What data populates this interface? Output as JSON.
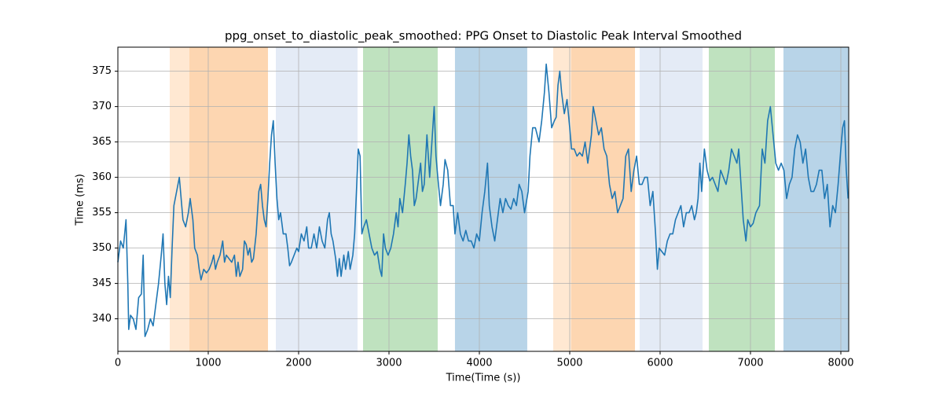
{
  "chart_data": {
    "type": "line",
    "title": "ppg_onset_to_diastolic_peak_smoothed: PPG Onset to Diastolic Peak Interval Smoothed",
    "xlabel": "Time(Time (s))",
    "ylabel": "Time (ms)",
    "color": "#1f77b4",
    "x": [
      0,
      30,
      60,
      90,
      110,
      120,
      140,
      170,
      200,
      230,
      260,
      280,
      300,
      330,
      360,
      390,
      420,
      450,
      480,
      500,
      520,
      540,
      560,
      580,
      600,
      620,
      650,
      680,
      700,
      720,
      750,
      780,
      800,
      830,
      850,
      880,
      900,
      920,
      950,
      980,
      1010,
      1040,
      1060,
      1080,
      1100,
      1130,
      1160,
      1180,
      1200,
      1230,
      1260,
      1290,
      1310,
      1330,
      1350,
      1380,
      1400,
      1420,
      1440,
      1460,
      1480,
      1500,
      1530,
      1560,
      1580,
      1600,
      1620,
      1640,
      1660,
      1680,
      1700,
      1720,
      1740,
      1760,
      1780,
      1800,
      1830,
      1860,
      1880,
      1900,
      1920,
      1950,
      1980,
      2000,
      2030,
      2060,
      2090,
      2110,
      2140,
      2170,
      2200,
      2230,
      2260,
      2290,
      2320,
      2340,
      2360,
      2380,
      2410,
      2430,
      2450,
      2470,
      2500,
      2520,
      2550,
      2570,
      2600,
      2620,
      2640,
      2660,
      2680,
      2700,
      2720,
      2750,
      2780,
      2810,
      2840,
      2870,
      2900,
      2920,
      2940,
      2960,
      2990,
      3020,
      3050,
      3080,
      3100,
      3120,
      3150,
      3180,
      3200,
      3220,
      3240,
      3260,
      3280,
      3300,
      3320,
      3350,
      3370,
      3390,
      3420,
      3450,
      3470,
      3500,
      3520,
      3540,
      3570,
      3600,
      3620,
      3650,
      3680,
      3710,
      3730,
      3760,
      3790,
      3820,
      3850,
      3880,
      3910,
      3940,
      3970,
      4000,
      4030,
      4060,
      4090,
      4110,
      4140,
      4170,
      4200,
      4230,
      4260,
      4290,
      4320,
      4350,
      4380,
      4410,
      4440,
      4470,
      4500,
      4540,
      4560,
      4590,
      4620,
      4660,
      4690,
      4720,
      4740,
      4770,
      4800,
      4830,
      4850,
      4870,
      4890,
      4910,
      4940,
      4970,
      5000,
      5020,
      5050,
      5080,
      5110,
      5140,
      5170,
      5200,
      5240,
      5260,
      5290,
      5320,
      5350,
      5380,
      5410,
      5440,
      5470,
      5500,
      5530,
      5560,
      5590,
      5620,
      5650,
      5680,
      5710,
      5740,
      5770,
      5800,
      5830,
      5860,
      5890,
      5920,
      5950,
      5970,
      5990,
      6020,
      6050,
      6080,
      6110,
      6140,
      6170,
      6200,
      6230,
      6260,
      6290,
      6320,
      6350,
      6380,
      6400,
      6420,
      6440,
      6460,
      6490,
      6520,
      6550,
      6580,
      6610,
      6640,
      6670,
      6700,
      6730,
      6760,
      6790,
      6820,
      6850,
      6870,
      6900,
      6920,
      6950,
      6970,
      7000,
      7030,
      7060,
      7100,
      7130,
      7160,
      7190,
      7220,
      7250,
      7280,
      7310,
      7340,
      7370,
      7400,
      7430,
      7460,
      7490,
      7520,
      7550,
      7580,
      7610,
      7640,
      7670,
      7700,
      7730,
      7760,
      7790,
      7820,
      7850,
      7880,
      7910,
      7940,
      7970,
      8000,
      8020,
      8040,
      8060,
      8080
    ],
    "values": [
      348,
      351,
      350,
      354,
      345,
      338.5,
      340.5,
      340,
      338.5,
      343,
      343.5,
      349,
      337.5,
      338.5,
      340,
      339,
      342,
      345,
      349,
      352,
      345,
      342,
      346,
      343,
      350,
      356,
      358,
      360,
      357,
      354,
      353,
      355,
      357,
      354,
      350,
      349,
      347,
      345.5,
      347,
      346.5,
      347,
      348,
      349,
      347,
      348,
      349,
      351,
      348,
      349,
      348.5,
      348,
      349,
      346,
      348,
      346,
      347,
      351,
      350.5,
      349,
      350,
      348,
      348.5,
      352,
      358,
      359,
      356,
      354,
      353,
      357,
      362,
      366,
      368,
      362,
      357,
      354,
      355,
      352,
      352,
      350,
      347.5,
      348,
      349,
      350,
      349.5,
      352,
      351,
      353,
      350,
      350,
      352,
      350,
      353,
      351,
      350,
      354,
      355,
      352,
      351,
      348.5,
      346,
      348.5,
      346,
      349,
      347,
      349.5,
      347,
      349,
      352,
      358,
      364,
      363,
      352,
      353,
      354,
      352,
      350,
      349,
      349.5,
      347,
      346,
      352,
      350,
      349,
      350,
      352,
      355,
      353,
      357,
      355,
      359,
      362,
      366,
      363,
      361,
      356,
      357,
      359,
      362,
      358,
      359,
      366,
      360,
      364,
      370,
      363,
      360,
      356,
      359,
      362.5,
      361,
      356,
      356,
      352,
      355,
      352,
      351,
      352.5,
      351,
      351,
      350,
      352,
      351,
      355,
      358,
      362,
      356,
      353,
      351,
      354,
      357,
      355,
      357,
      356,
      355.5,
      357,
      356,
      359,
      358,
      355,
      358,
      363,
      367,
      367,
      365,
      368,
      372,
      376,
      372,
      367,
      368,
      368.5,
      373,
      375,
      372,
      369,
      371,
      367,
      364,
      364,
      363,
      363.5,
      363,
      365,
      362,
      366,
      370,
      368,
      366,
      367,
      364,
      363,
      359,
      357,
      358,
      355,
      356,
      357,
      363,
      364,
      358,
      361,
      363,
      359,
      359,
      360,
      360,
      356,
      358,
      352,
      347,
      350,
      349.5,
      349,
      351,
      352,
      352,
      354,
      355,
      356,
      353,
      355,
      355,
      356,
      354,
      355,
      357,
      362,
      358,
      364,
      361,
      359.5,
      360,
      359,
      358,
      361,
      360,
      359,
      361,
      364,
      363,
      362,
      364,
      358,
      354,
      351,
      354,
      353,
      353.5,
      355,
      356,
      364,
      362,
      368,
      370,
      366,
      362,
      361,
      362,
      361,
      357,
      359,
      360,
      364,
      366,
      365,
      362,
      364,
      360,
      358,
      358,
      359,
      361,
      361,
      357,
      359,
      353,
      356,
      355,
      359,
      364,
      367,
      368,
      361,
      357
    ],
    "spans": [
      {
        "start": 574,
        "end": 791,
        "color": "#ffe8d2"
      },
      {
        "start": 791,
        "end": 1661,
        "color": "#fdd6b1"
      },
      {
        "start": 1748,
        "end": 2652,
        "color": "#e4ebf6"
      },
      {
        "start": 2713,
        "end": 3539,
        "color": "#bfe2bf"
      },
      {
        "start": 3730,
        "end": 4530,
        "color": "#b8d4e8"
      },
      {
        "start": 4817,
        "end": 5017,
        "color": "#ffe8d2"
      },
      {
        "start": 5017,
        "end": 5722,
        "color": "#fdd6b1"
      },
      {
        "start": 5774,
        "end": 6470,
        "color": "#e4ebf6"
      },
      {
        "start": 6539,
        "end": 7270,
        "color": "#bfe2bf"
      },
      {
        "start": 7365,
        "end": 8087,
        "color": "#b8d4e8"
      }
    ],
    "xlim": [
      0,
      8087
    ],
    "ylim": [
      335.4,
      378.4
    ],
    "xticks": [
      0,
      1000,
      2000,
      3000,
      4000,
      5000,
      6000,
      7000,
      8000
    ],
    "yticks": [
      340,
      345,
      350,
      355,
      360,
      365,
      370,
      375
    ],
    "grid": true
  }
}
